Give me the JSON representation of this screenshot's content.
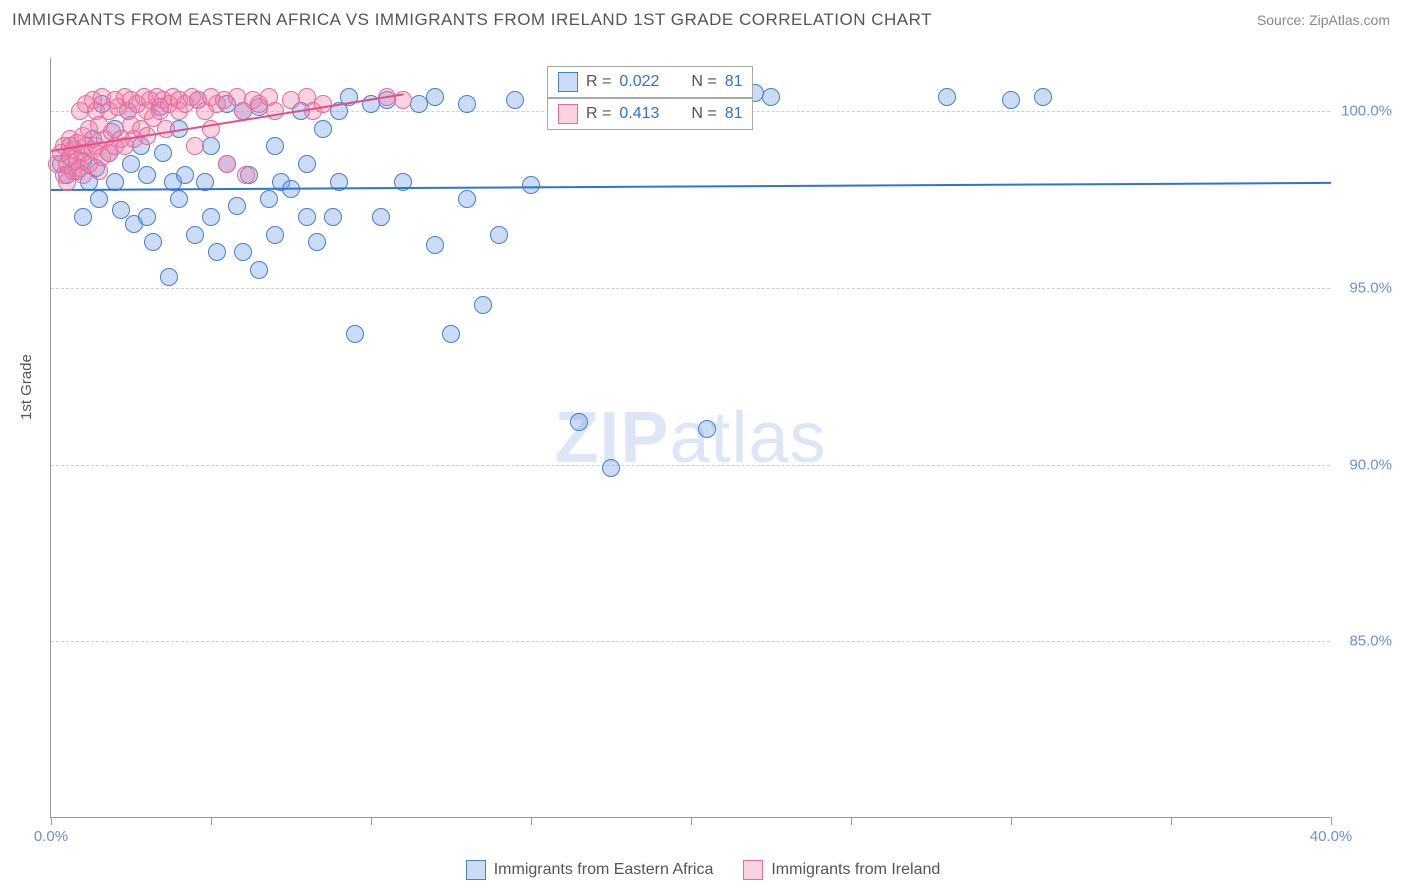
{
  "title": "IMMIGRANTS FROM EASTERN AFRICA VS IMMIGRANTS FROM IRELAND 1ST GRADE CORRELATION CHART",
  "source_label": "Source: ZipAtlas.com",
  "yaxis_title": "1st Grade",
  "watermark": {
    "bold": "ZIP",
    "light": "atlas"
  },
  "chart": {
    "type": "scatter",
    "xlim": [
      0,
      40
    ],
    "ylim": [
      80,
      101.5
    ],
    "xticks": [
      0,
      5,
      10,
      15,
      20,
      25,
      30,
      35,
      40
    ],
    "xlabels_shown": {
      "0": "0.0%",
      "40": "40.0%"
    },
    "yticks": [
      85,
      90,
      95,
      100
    ],
    "ylabel_suffix": "%",
    "grid_color": "#cccccc",
    "axis_color": "#999999",
    "background": "#ffffff",
    "marker_radius": 9,
    "marker_opacity": 0.45,
    "series": [
      {
        "name": "Immigrants from Eastern Africa",
        "color": "#6a9ae8",
        "fill": "rgba(106,154,232,0.35)",
        "stroke": "#4a7ed0",
        "R": "0.022",
        "N": "81",
        "trend": {
          "x1": 0,
          "y1": 97.8,
          "x2": 40,
          "y2": 98.0,
          "color": "#2f72d8",
          "width": 2
        },
        "points": [
          [
            0.3,
            98.5
          ],
          [
            0.5,
            98.2
          ],
          [
            0.6,
            99.0
          ],
          [
            0.8,
            98.3
          ],
          [
            1.0,
            97.0
          ],
          [
            1.0,
            98.6
          ],
          [
            1.2,
            98.0
          ],
          [
            1.3,
            99.2
          ],
          [
            1.4,
            98.4
          ],
          [
            1.6,
            100.2
          ],
          [
            1.5,
            97.5
          ],
          [
            1.8,
            98.8
          ],
          [
            2.0,
            98.0
          ],
          [
            2.0,
            99.5
          ],
          [
            2.2,
            97.2
          ],
          [
            2.4,
            100.0
          ],
          [
            2.5,
            98.5
          ],
          [
            2.6,
            96.8
          ],
          [
            2.8,
            99.0
          ],
          [
            3.0,
            97.0
          ],
          [
            3.0,
            98.2
          ],
          [
            3.2,
            96.3
          ],
          [
            3.4,
            100.1
          ],
          [
            3.5,
            98.8
          ],
          [
            3.7,
            95.3
          ],
          [
            3.8,
            98.0
          ],
          [
            4.0,
            99.5
          ],
          [
            4.0,
            97.5
          ],
          [
            4.2,
            98.2
          ],
          [
            4.5,
            96.5
          ],
          [
            4.6,
            100.3
          ],
          [
            4.8,
            98.0
          ],
          [
            5.0,
            99.0
          ],
          [
            5.0,
            97.0
          ],
          [
            5.2,
            96.0
          ],
          [
            5.5,
            100.2
          ],
          [
            5.5,
            98.5
          ],
          [
            5.8,
            97.3
          ],
          [
            6.0,
            100.0
          ],
          [
            6.0,
            96.0
          ],
          [
            6.2,
            98.2
          ],
          [
            6.5,
            95.5
          ],
          [
            6.5,
            100.1
          ],
          [
            6.8,
            97.5
          ],
          [
            7.0,
            99.0
          ],
          [
            7.0,
            96.5
          ],
          [
            7.2,
            98.0
          ],
          [
            7.5,
            97.8
          ],
          [
            7.8,
            100.0
          ],
          [
            8.0,
            97.0
          ],
          [
            8.0,
            98.5
          ],
          [
            8.3,
            96.3
          ],
          [
            8.5,
            99.5
          ],
          [
            8.8,
            97.0
          ],
          [
            9.0,
            100.0
          ],
          [
            9.0,
            98.0
          ],
          [
            9.3,
            100.4
          ],
          [
            9.5,
            93.7
          ],
          [
            10.0,
            100.2
          ],
          [
            10.3,
            97.0
          ],
          [
            10.5,
            100.3
          ],
          [
            11.0,
            98.0
          ],
          [
            11.5,
            100.2
          ],
          [
            12.0,
            96.2
          ],
          [
            12.0,
            100.4
          ],
          [
            12.5,
            93.7
          ],
          [
            13.0,
            100.2
          ],
          [
            13.0,
            97.5
          ],
          [
            13.5,
            94.5
          ],
          [
            14.0,
            96.5
          ],
          [
            14.5,
            100.3
          ],
          [
            15.0,
            97.9
          ],
          [
            16.0,
            100.3
          ],
          [
            16.5,
            91.2
          ],
          [
            17.5,
            89.9
          ],
          [
            20.5,
            91.0
          ],
          [
            22.0,
            100.5
          ],
          [
            22.5,
            100.4
          ],
          [
            28.0,
            100.4
          ],
          [
            30.0,
            100.3
          ],
          [
            31.0,
            100.4
          ]
        ]
      },
      {
        "name": "Immigrants from Ireland",
        "color": "#f08fb0",
        "fill": "rgba(240,130,170,0.35)",
        "stroke": "#e86a9a",
        "R": "0.413",
        "N": "81",
        "trend": {
          "x1": 0,
          "y1": 98.9,
          "x2": 11,
          "y2": 100.5,
          "color": "#e05088",
          "width": 2
        },
        "points": [
          [
            0.2,
            98.5
          ],
          [
            0.3,
            98.8
          ],
          [
            0.4,
            98.2
          ],
          [
            0.4,
            99.0
          ],
          [
            0.5,
            98.5
          ],
          [
            0.5,
            98.0
          ],
          [
            0.6,
            98.7
          ],
          [
            0.6,
            99.2
          ],
          [
            0.7,
            98.3
          ],
          [
            0.7,
            98.9
          ],
          [
            0.8,
            98.6
          ],
          [
            0.8,
            99.1
          ],
          [
            0.9,
            98.4
          ],
          [
            0.9,
            100.0
          ],
          [
            1.0,
            98.8
          ],
          [
            1.0,
            99.3
          ],
          [
            1.0,
            98.2
          ],
          [
            1.1,
            99.0
          ],
          [
            1.1,
            100.2
          ],
          [
            1.2,
            98.5
          ],
          [
            1.2,
            99.5
          ],
          [
            1.3,
            100.3
          ],
          [
            1.3,
            98.9
          ],
          [
            1.4,
            99.0
          ],
          [
            1.4,
            100.0
          ],
          [
            1.5,
            98.3
          ],
          [
            1.5,
            99.6
          ],
          [
            1.6,
            100.4
          ],
          [
            1.6,
            98.7
          ],
          [
            1.7,
            99.2
          ],
          [
            1.8,
            100.0
          ],
          [
            1.8,
            98.8
          ],
          [
            1.9,
            99.4
          ],
          [
            2.0,
            100.3
          ],
          [
            2.0,
            99.0
          ],
          [
            2.1,
            100.1
          ],
          [
            2.2,
            99.2
          ],
          [
            2.3,
            100.4
          ],
          [
            2.3,
            99.0
          ],
          [
            2.4,
            100.0
          ],
          [
            2.5,
            99.6
          ],
          [
            2.5,
            100.3
          ],
          [
            2.6,
            99.2
          ],
          [
            2.7,
            100.2
          ],
          [
            2.8,
            99.5
          ],
          [
            2.9,
            100.4
          ],
          [
            3.0,
            100.0
          ],
          [
            3.0,
            99.3
          ],
          [
            3.1,
            100.3
          ],
          [
            3.2,
            99.8
          ],
          [
            3.3,
            100.4
          ],
          [
            3.4,
            100.0
          ],
          [
            3.5,
            100.3
          ],
          [
            3.6,
            99.5
          ],
          [
            3.7,
            100.2
          ],
          [
            3.8,
            100.4
          ],
          [
            4.0,
            100.0
          ],
          [
            4.0,
            100.3
          ],
          [
            4.2,
            100.2
          ],
          [
            4.4,
            100.4
          ],
          [
            4.5,
            99.0
          ],
          [
            4.6,
            100.3
          ],
          [
            4.8,
            100.0
          ],
          [
            5.0,
            100.4
          ],
          [
            5.0,
            99.5
          ],
          [
            5.2,
            100.2
          ],
          [
            5.4,
            100.3
          ],
          [
            5.5,
            98.5
          ],
          [
            5.8,
            100.4
          ],
          [
            6.0,
            100.0
          ],
          [
            6.1,
            98.2
          ],
          [
            6.3,
            100.3
          ],
          [
            6.5,
            100.2
          ],
          [
            6.8,
            100.4
          ],
          [
            7.0,
            100.0
          ],
          [
            7.5,
            100.3
          ],
          [
            8.0,
            100.4
          ],
          [
            8.2,
            100.0
          ],
          [
            8.5,
            100.2
          ],
          [
            10.5,
            100.4
          ],
          [
            11.0,
            100.3
          ]
        ]
      }
    ]
  },
  "stat_legend": {
    "rows": [
      {
        "swatch_fill": "rgba(106,154,232,0.35)",
        "swatch_stroke": "#4a7ed0",
        "r_label": "R =",
        "r_value": "0.022",
        "n_label": "N =",
        "n_value": "81"
      },
      {
        "swatch_fill": "rgba(240,130,170,0.35)",
        "swatch_stroke": "#e86a9a",
        "r_label": "R =",
        "r_value": "0.413",
        "n_label": "N =",
        "n_value": "81"
      }
    ]
  },
  "bottom_legend": [
    {
      "label": "Immigrants from Eastern Africa",
      "fill": "rgba(106,154,232,0.35)",
      "stroke": "#4a7ed0"
    },
    {
      "label": "Immigrants from Ireland",
      "fill": "rgba(240,130,170,0.35)",
      "stroke": "#e86a9a"
    }
  ]
}
